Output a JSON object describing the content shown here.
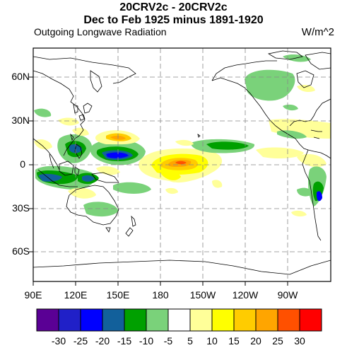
{
  "header": {
    "title_line1": "20CRV2c - 20CRV2c",
    "title_line2": "Dec to Feb 1925 minus 1891-1920",
    "variable": "Outgoing Longwave Radiation",
    "units": "W/m^2"
  },
  "map": {
    "projection": "cylindrical-equidistant",
    "lon_range": [
      90,
      300
    ],
    "lat_range": [
      -80,
      80
    ],
    "grid": "dashed",
    "lat_labels": [
      "60N",
      "30N",
      "0",
      "30S",
      "60S"
    ],
    "lon_labels": [
      "90E",
      "120E",
      "150E",
      "180",
      "150W",
      "120W",
      "90W"
    ]
  },
  "colorbar": {
    "labels": [
      "-30",
      "-25",
      "-20",
      "-15",
      "-10",
      "-5",
      "5",
      "10",
      "15",
      "20",
      "25",
      "30"
    ],
    "colors": [
      "#5a0095",
      "#2020c8",
      "#0000ff",
      "#12609b",
      "#00a000",
      "#7ad27a",
      "#ffffff",
      "#ffff99",
      "#ffff00",
      "#ffcc00",
      "#ffa500",
      "#ff5000",
      "#ff0000"
    ]
  }
}
